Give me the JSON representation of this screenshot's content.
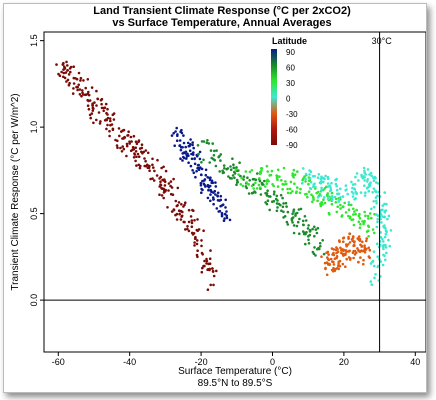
{
  "chart_data": {
    "type": "scatter",
    "title": "Land Transient Climate Response (°C per 2xCO2)",
    "subtitle": "vs Surface Temperature, Annual Averages",
    "xlabel": "Surface Temperature (°C)",
    "xlabel2": "89.5°N to 89.5°S",
    "ylabel": "Transient Climate Response (°C per W/m^2)",
    "xlim": [
      -64,
      43
    ],
    "ylim": [
      -0.3,
      1.55
    ],
    "xticks": [
      "-60",
      "-40",
      "-20",
      "0",
      "20",
      "40"
    ],
    "xtick_values": [
      -60,
      -40,
      -20,
      0,
      20,
      40
    ],
    "yticks": [
      "0.0",
      "0.5",
      "1.0",
      "1.5"
    ],
    "ytick_values": [
      0,
      0.5,
      1.0,
      1.5
    ],
    "reference_lines": {
      "vertical_x": 30,
      "vertical_label": "30°C",
      "horizontal_y": 0
    },
    "color_scale": {
      "title": "Latitude",
      "labels": [
        "90",
        "60",
        "30",
        "0",
        "-30",
        "-60",
        "-90"
      ],
      "colors": [
        "#0a1a8a",
        "#1a8a2a",
        "#2ee62e",
        "#3de8d0",
        "#e05a10",
        "#b01810",
        "#7a0c08"
      ]
    },
    "series": [
      {
        "color": "#7a0c08",
        "points": [
          [
            -60,
            1.36
          ],
          [
            -55,
            1.25
          ],
          [
            -50,
            1.13
          ],
          [
            -45,
            1.0
          ],
          [
            -40,
            0.9
          ],
          [
            -35,
            0.8
          ],
          [
            -30,
            0.66
          ],
          [
            -25,
            0.5
          ],
          [
            -20,
            0.34
          ],
          [
            -17,
            0.12
          ]
        ]
      },
      {
        "color": "#0a1a8a",
        "points": [
          [
            -27,
            0.97
          ],
          [
            -24,
            0.86
          ],
          [
            -20,
            0.74
          ],
          [
            -17,
            0.62
          ],
          [
            -13,
            0.5
          ]
        ]
      },
      {
        "color": "#1a8a2a",
        "points": [
          [
            -20,
            0.88
          ],
          [
            -12,
            0.76
          ],
          [
            -5,
            0.66
          ],
          [
            2,
            0.55
          ],
          [
            8,
            0.43
          ],
          [
            14,
            0.3
          ]
        ]
      },
      {
        "color": "#2ee62e",
        "points": [
          [
            -10,
            0.7
          ],
          [
            0,
            0.72
          ],
          [
            8,
            0.67
          ],
          [
            15,
            0.58
          ],
          [
            22,
            0.5
          ],
          [
            28,
            0.42
          ]
        ]
      },
      {
        "color": "#3de8d0",
        "points": [
          [
            8,
            0.72
          ],
          [
            15,
            0.65
          ],
          [
            22,
            0.62
          ],
          [
            27,
            0.72
          ],
          [
            30,
            0.55
          ],
          [
            32,
            0.35
          ],
          [
            28,
            0.12
          ]
        ]
      },
      {
        "color": "#e05a10",
        "points": [
          [
            15,
            0.2
          ],
          [
            18,
            0.24
          ],
          [
            21,
            0.3
          ],
          [
            24,
            0.33
          ],
          [
            26,
            0.27
          ]
        ]
      }
    ]
  }
}
